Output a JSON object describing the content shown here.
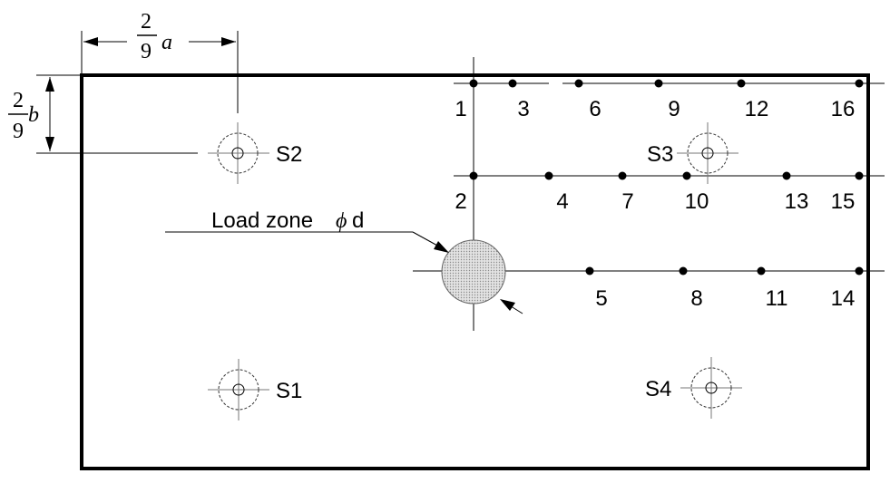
{
  "dimensions": {
    "a_num": "2",
    "a_den": "9",
    "a_var": "a",
    "b_num": "2",
    "b_den": "9",
    "b_var": "b"
  },
  "load_zone": {
    "label": "Load zone",
    "symbol": "ϕ",
    "var": "d"
  },
  "supports": [
    {
      "id": "S1",
      "label": "S1"
    },
    {
      "id": "S2",
      "label": "S2"
    },
    {
      "id": "S3",
      "label": "S3"
    },
    {
      "id": "S4",
      "label": "S4"
    }
  ],
  "points": [
    {
      "id": "1",
      "label": "1"
    },
    {
      "id": "2",
      "label": "2"
    },
    {
      "id": "3",
      "label": "3"
    },
    {
      "id": "4",
      "label": "4"
    },
    {
      "id": "5",
      "label": "5"
    },
    {
      "id": "6",
      "label": "6"
    },
    {
      "id": "7",
      "label": "7"
    },
    {
      "id": "8",
      "label": "8"
    },
    {
      "id": "9",
      "label": "9"
    },
    {
      "id": "10",
      "label": "10"
    },
    {
      "id": "11",
      "label": "11"
    },
    {
      "id": "12",
      "label": "12"
    },
    {
      "id": "13",
      "label": "13"
    },
    {
      "id": "14",
      "label": "14"
    },
    {
      "id": "15",
      "label": "15"
    },
    {
      "id": "16",
      "label": "16"
    }
  ]
}
